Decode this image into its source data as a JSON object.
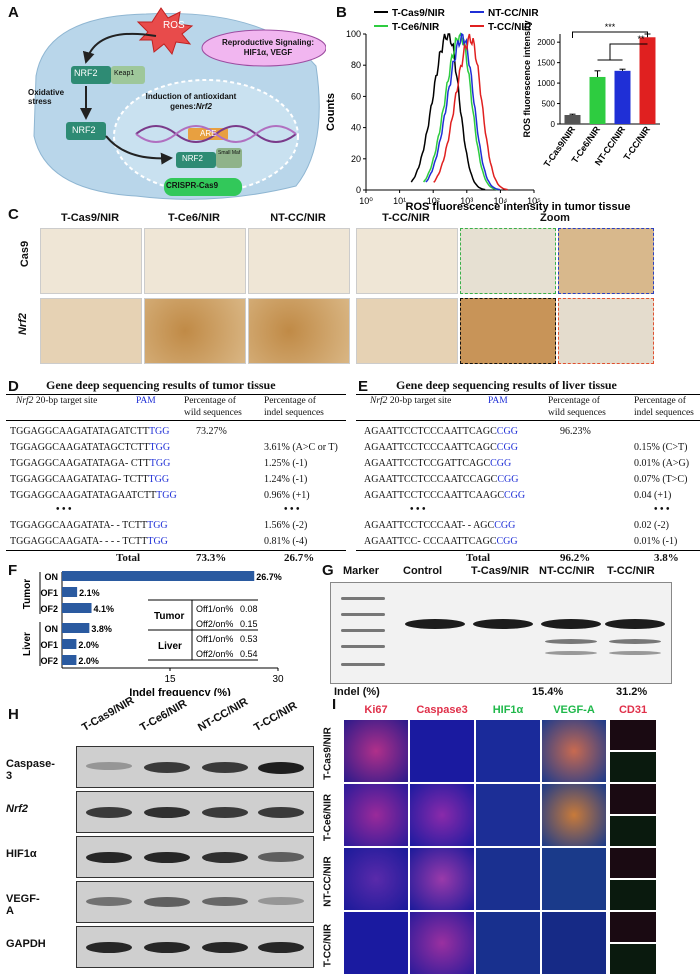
{
  "panels": {
    "A": "A",
    "B": "B",
    "C": "C",
    "D": "D",
    "E": "E",
    "F": "F",
    "G": "G",
    "H": "H",
    "I": "I"
  },
  "panel_a": {
    "ros": "ROS",
    "nrf2_top": "NRF2",
    "keap1": "Keap1",
    "oxidative_stress": "Oxidative stress",
    "nrf2_mid": "NRF2",
    "induction": "Induction of antioxidant genes:",
    "induction_gene": "Nrf2",
    "are": "ARE",
    "nrf2_bottom": "NRF2",
    "small_maf": "Small Maf",
    "reproductive": "Reproductive Signaling: HIF1α, VEGF",
    "crispr": "CRISPR-Cas9"
  },
  "chart_data": [
    {
      "type": "line",
      "title": "",
      "xlabel": "ROS fluorescence intensity in tumor tissue",
      "ylabel": "Counts",
      "x_scale": "log",
      "xlim": [
        1,
        100000
      ],
      "ylim": [
        0,
        100
      ],
      "x_ticks": [
        "10⁰",
        "10¹",
        "10²",
        "10³",
        "10⁴",
        "10⁵"
      ],
      "y_ticks": [
        "0",
        "20",
        "40",
        "60",
        "80",
        "100"
      ],
      "legend": [
        {
          "name": "T-Cas9/NIR",
          "color": "#000000"
        },
        {
          "name": "NT-CC/NIR",
          "color": "#1f2fd6"
        },
        {
          "name": "T-Ce6/NIR",
          "color": "#2ecc40"
        },
        {
          "name": "T-CC/NIR",
          "color": "#e02020"
        }
      ],
      "series": [
        {
          "name": "T-Cas9/NIR",
          "color": "#000000",
          "peak_x": 280,
          "peak_y": 100
        },
        {
          "name": "T-Ce6/NIR",
          "color": "#2ecc40",
          "peak_x": 650,
          "peak_y": 99
        },
        {
          "name": "NT-CC/NIR",
          "color": "#1f2fd6",
          "peak_x": 760,
          "peak_y": 98
        },
        {
          "name": "T-CC/NIR",
          "color": "#e02020",
          "peak_x": 1300,
          "peak_y": 97
        }
      ]
    },
    {
      "type": "bar",
      "title": "",
      "ylabel": "ROS fluorescence intensity",
      "categories": [
        "T-Cas9/NIR",
        "T-Ce6/NIR",
        "NT-CC/NIR",
        "T-CC/NIR"
      ],
      "values": [
        220,
        1150,
        1300,
        2120
      ],
      "errors": [
        20,
        150,
        40,
        80
      ],
      "colors": [
        "#555555",
        "#2ecc40",
        "#1f2fd6",
        "#e02020"
      ],
      "ylim": [
        0,
        2200
      ],
      "y_ticks": [
        "0",
        "500",
        "1000",
        "1500",
        "2000"
      ],
      "significance": [
        "***",
        "**"
      ]
    },
    {
      "type": "bar",
      "orientation": "horizontal",
      "title": "",
      "xlabel": "Indel frequency (%)",
      "xlim": [
        0,
        30
      ],
      "x_ticks": [
        "15",
        "30"
      ],
      "groups": [
        "Tumor",
        "Liver"
      ],
      "categories": [
        "ON",
        "OF1",
        "OF2",
        "ON",
        "OF1",
        "OF2"
      ],
      "values": [
        26.7,
        2.1,
        4.1,
        3.8,
        2.0,
        2.0
      ],
      "value_labels": [
        "26.7%",
        "2.1%",
        "4.1%",
        "3.8%",
        "2.0%",
        "2.0%"
      ],
      "color": "#2a5aa0"
    }
  ],
  "panel_c": {
    "columns": [
      "T-Cas9/NIR",
      "T-Ce6/NIR",
      "NT-CC/NIR",
      "T-CC/NIR"
    ],
    "zoom": "Zoom",
    "rows": [
      "Cas9",
      "Nrf2"
    ]
  },
  "panel_d": {
    "title": "Gene deep sequencing results of tumor tissue",
    "h_target_gene": "Nrf2",
    "h_target": " 20-bp target site",
    "h_pam": "PAM",
    "h_wild1": "Percentage of",
    "h_wild2": "wild sequences",
    "h_indel1": "Percentage of",
    "h_indel2": "indel sequences",
    "rows": [
      {
        "seq": "TGGAGGCAAGATATAGATCTT",
        "pam": "TGG",
        "wild": "73.27%",
        "indel": ""
      },
      {
        "seq": "TGGAGGCAAGATATAGCTCTT",
        "pam": "TGG",
        "wild": "",
        "indel": "3.61% (A>C or T)"
      },
      {
        "seq": "TGGAGGCAAGATATAGA- CTT",
        "pam": "TGG",
        "wild": "",
        "indel": "1.25% (-1)"
      },
      {
        "seq": "TGGAGGCAAGATATAG- TCTT",
        "pam": "TGG",
        "wild": "",
        "indel": "1.24% (-1)"
      },
      {
        "seq": "TGGAGGCAAGATATAGAATCTT",
        "pam": "TGG",
        "wild": "",
        "indel": "0.96% (+1)"
      },
      {
        "seq": "TGGAGGCAAGATATA- - TCTT",
        "pam": "TGG",
        "wild": "",
        "indel": "1.56% (-2)"
      },
      {
        "seq": "TGGAGGCAAGATA- - - - TCTT",
        "pam": "TGG",
        "wild": "",
        "indel": "0.81% (-4)"
      }
    ],
    "ellipsis": "• • •",
    "total_label": "Total",
    "total_wild": "73.3%",
    "total_indel": "26.7%"
  },
  "panel_e": {
    "title": "Gene deep sequencing results of liver tissue",
    "h_target_gene": "Nrf2",
    "h_target": " 20-bp target site",
    "h_pam": "PAM",
    "h_wild1": "Percentage of",
    "h_wild2": "wild sequences",
    "h_indel1": "Percentage of",
    "h_indel2": "indel sequences",
    "rows": [
      {
        "seq": "AGAATTCCTCCCAATTCAGC",
        "pam": "CGG",
        "wild": "96.23%",
        "indel": ""
      },
      {
        "seq": "AGAATTCCTCCCAATTCAGC",
        "pam": "CGG",
        "wild": "",
        "indel": "0.15% (C>T)"
      },
      {
        "seq": "AGAATTCCTCCGATTCAGC",
        "pam": "CGG",
        "wild": "",
        "indel": "0.01% (A>G)"
      },
      {
        "seq": "AGAATTCCTCCCAATCCAGC",
        "pam": "CGG",
        "wild": "",
        "indel": "0.07% (T>C)"
      },
      {
        "seq": "AGAATTCCTCCCAATTCAAGC",
        "pam": "CGG",
        "wild": "",
        "indel": "0.04 (+1)"
      },
      {
        "seq": "AGAATTCCTCCCAAT- - AGC",
        "pam": "CGG",
        "wild": "",
        "indel": "0.02 (-2)"
      },
      {
        "seq": "AGAATTCC- CCCAATTCAGC",
        "pam": "CGG",
        "wild": "",
        "indel": "0.01% (-1)"
      }
    ],
    "ellipsis": "• • •",
    "total_label": "Total",
    "total_wild": "96.2%",
    "total_indel": "3.8%"
  },
  "panel_f": {
    "tumor": "Tumor",
    "liver": "Liver",
    "row_labels": [
      "ON",
      "OF1",
      "OF2",
      "ON",
      "OF1",
      "OF2"
    ],
    "inset_tumor": "Tumor",
    "inset_liver": "Liver",
    "inset": [
      {
        "label": "Off1/on%",
        "value": "0.08"
      },
      {
        "label": "Off2/on%",
        "value": "0.15"
      },
      {
        "label": "Off1/on%",
        "value": "0.53"
      },
      {
        "label": "Off2/on%",
        "value": "0.54"
      }
    ]
  },
  "panel_g": {
    "lanes": [
      "Marker",
      "Control",
      "T-Cas9/NIR",
      "NT-CC/NIR",
      "T-CC/NIR"
    ],
    "indel_label": "Indel (%)",
    "indel_values": [
      "15.4%",
      "31.2%"
    ]
  },
  "panel_h": {
    "lanes": [
      "T-Cas9/NIR",
      "T-Ce6/NIR",
      "NT-CC/NIR",
      "T-CC/NIR"
    ],
    "proteins": [
      "Caspase-3",
      "Nrf2",
      "HIF1α",
      "VEGF-A",
      "GAPDH"
    ]
  },
  "panel_i": {
    "columns": [
      "Ki67",
      "Caspase3",
      "HIF1α",
      "VEGF-A",
      "CD31"
    ],
    "column_colors": [
      "#e0304a",
      "#e0304a",
      "#1fb84a",
      "#1fb84a",
      "#e0304a"
    ],
    "rows": [
      "T-Cas9/NIR",
      "T-Ce6/NIR",
      "NT-CC/NIR",
      "T-CC/NIR"
    ]
  }
}
